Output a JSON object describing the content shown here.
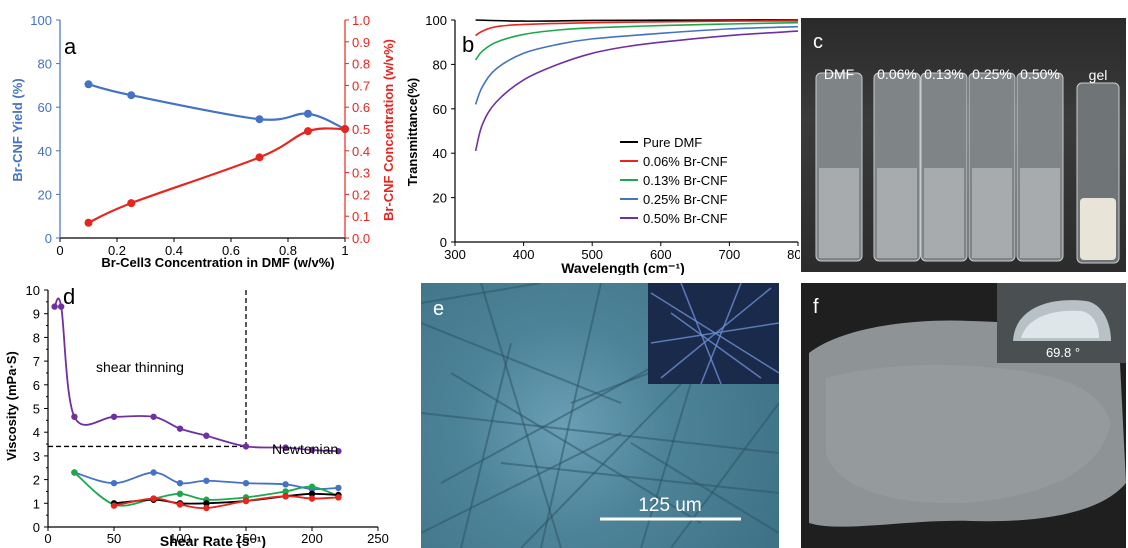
{
  "colors": {
    "blue": "#4472c4",
    "red": "#e8251f",
    "green": "#1ea84e",
    "purple": "#7030a0",
    "black": "#000000",
    "gray_grid": "#d9d9d9"
  },
  "chart_data": [
    {
      "panel": "a",
      "type": "line",
      "xlabel": "Br-Cell3 Concentration in DMF (w/v%)",
      "ylabel": "Br-CNF Yield (%)",
      "y2label": "Br-CNF Concentration (w/v%)",
      "xlim": [
        0,
        1
      ],
      "ylim": [
        0,
        100
      ],
      "y2lim": [
        0,
        1.0
      ],
      "xticks": [
        "0",
        "0.2",
        "0.4",
        "0.6",
        "0.8",
        "1"
      ],
      "yticks": [
        "0",
        "20",
        "40",
        "60",
        "80",
        "100"
      ],
      "y2ticks": [
        "0.0",
        "0.1",
        "0.2",
        "0.3",
        "0.4",
        "0.5",
        "0.6",
        "0.7",
        "0.8",
        "0.9",
        "1.0"
      ],
      "series": [
        {
          "axis": "left",
          "color": "#4472c4",
          "x": [
            0.1,
            0.25,
            0.7,
            0.87,
            1.0
          ],
          "y": [
            70.5,
            65.5,
            54.5,
            57,
            50
          ]
        },
        {
          "axis": "right",
          "color": "#e8251f",
          "x": [
            0.1,
            0.25,
            0.7,
            0.87,
            1.0
          ],
          "y": [
            0.07,
            0.16,
            0.37,
            0.49,
            0.5
          ]
        }
      ]
    },
    {
      "panel": "b",
      "type": "line",
      "xlabel": "Wavelength (cm⁻¹)",
      "ylabel": "Transmittance(%)",
      "xlim": [
        300,
        800
      ],
      "ylim": [
        0,
        100
      ],
      "xticks": [
        "300",
        "400",
        "500",
        "600",
        "700",
        "800"
      ],
      "yticks": [
        "0",
        "20",
        "40",
        "60",
        "80",
        "100"
      ],
      "series": [
        {
          "name": "Pure DMF",
          "color": "#000000",
          "x": [
            330,
            400,
            500,
            600,
            700,
            800
          ],
          "y": [
            100,
            99.5,
            99.8,
            99.9,
            100,
            100
          ]
        },
        {
          "name": "0.06% Br-CNF",
          "color": "#e8251f",
          "x": [
            330,
            340,
            360,
            400,
            500,
            600,
            700,
            800
          ],
          "y": [
            93,
            95,
            97,
            98,
            98.8,
            99.2,
            99.5,
            99.6
          ]
        },
        {
          "name": "0.13% Br-CNF",
          "color": "#1ea84e",
          "x": [
            330,
            340,
            360,
            400,
            450,
            500,
            600,
            700,
            800
          ],
          "y": [
            82,
            86,
            90,
            93.5,
            95.5,
            96.5,
            97.5,
            98.2,
            98.8
          ]
        },
        {
          "name": "0.25% Br-CNF",
          "color": "#4472c4",
          "x": [
            330,
            340,
            360,
            400,
            450,
            500,
            600,
            700,
            800
          ],
          "y": [
            62,
            70,
            78,
            85,
            89,
            91.5,
            94,
            96,
            97
          ]
        },
        {
          "name": "0.50% Br-CNF",
          "color": "#7030a0",
          "x": [
            330,
            340,
            360,
            400,
            450,
            500,
            550,
            600,
            700,
            800
          ],
          "y": [
            41,
            53,
            63,
            73,
            80,
            85,
            88,
            90,
            93,
            95
          ]
        }
      ]
    },
    {
      "panel": "d",
      "type": "line",
      "xlabel": "Shear Rate (s⁻¹)",
      "ylabel": "Viscosity (mPa·S)",
      "xlim": [
        0,
        250
      ],
      "ylim": [
        0,
        10
      ],
      "xticks": [
        "0",
        "50",
        "100",
        "150",
        "200",
        "250"
      ],
      "yticks": [
        "0",
        "0.5",
        "1",
        "1.5",
        "2",
        "2.5",
        "3",
        "3.5",
        "4",
        "4.5",
        "5",
        "5.5",
        "6",
        "6.5",
        "7",
        "7.5",
        "8",
        "8.5",
        "9",
        "9.5",
        "10"
      ],
      "series": [
        {
          "color": "#7030a0",
          "x": [
            5,
            10,
            20,
            50,
            80,
            100,
            120,
            150,
            180,
            200,
            220
          ],
          "y": [
            9.3,
            9.3,
            4.65,
            4.65,
            4.65,
            4.15,
            3.85,
            3.4,
            3.35,
            3.25,
            3.2
          ]
        },
        {
          "color": "#4472c4",
          "x": [
            20,
            50,
            80,
            100,
            120,
            150,
            180,
            200,
            220
          ],
          "y": [
            2.3,
            1.85,
            2.3,
            1.85,
            1.95,
            1.85,
            1.8,
            1.6,
            1.65
          ]
        },
        {
          "color": "#1ea84e",
          "x": [
            20,
            50,
            80,
            100,
            120,
            150,
            180,
            200,
            220
          ],
          "y": [
            2.3,
            0.95,
            1.2,
            1.4,
            1.15,
            1.25,
            1.5,
            1.7,
            1.3
          ]
        },
        {
          "color": "#000000",
          "x": [
            50,
            80,
            100,
            120,
            150,
            180,
            200,
            220
          ],
          "y": [
            1.0,
            1.15,
            1.0,
            1.0,
            1.1,
            1.3,
            1.4,
            1.35
          ]
        },
        {
          "color": "#e8251f",
          "x": [
            50,
            80,
            100,
            120,
            150,
            180,
            200,
            220
          ],
          "y": [
            0.9,
            1.2,
            0.95,
            0.8,
            1.1,
            1.3,
            1.2,
            1.25
          ]
        }
      ],
      "annotations": [
        "shear thinning",
        "Newtonian"
      ],
      "dashed_threshold": {
        "x": 150,
        "y": 3.4
      }
    }
  ],
  "panels": {
    "a": "a",
    "b": "b",
    "c": "c",
    "d": "d",
    "e": "e",
    "f": "f"
  },
  "photo_c": {
    "vial_labels": [
      "DMF",
      "0.06%",
      "0.13%",
      "0.25%",
      "0.50%"
    ],
    "gel_label": "gel"
  },
  "photo_e": {
    "scale_bar": "125 um"
  },
  "photo_f": {
    "contact_angle": "69.8 °"
  }
}
